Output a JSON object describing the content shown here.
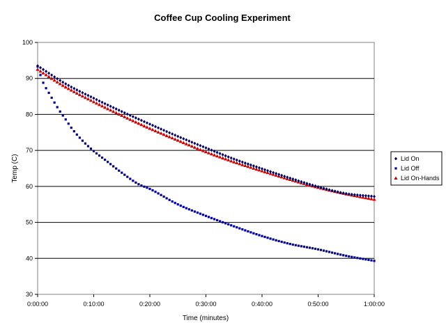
{
  "chart_data": {
    "type": "scatter",
    "title": "Coffee Cup Cooling Experiment",
    "xlabel": "Time (minutes)",
    "ylabel": "Temp (C)",
    "xlim": [
      0,
      60
    ],
    "ylim": [
      30,
      100
    ],
    "x_ticks": [
      0,
      10,
      20,
      30,
      40,
      50,
      60
    ],
    "x_tick_labels": [
      "0:00:00",
      "0:10:00",
      "0:20:00",
      "0:30:00",
      "0:40:00",
      "0:50:00",
      "1:00:00"
    ],
    "y_ticks": [
      30,
      40,
      50,
      60,
      70,
      80,
      90,
      100
    ],
    "y_tick_labels": [
      "30",
      "40",
      "50",
      "60",
      "70",
      "80",
      "90",
      "100"
    ],
    "grid": "horizontal major gridlines",
    "legend_position": "right",
    "series": [
      {
        "name": "Lid On",
        "color": "#000066",
        "marker": "diamond",
        "x": [
          0,
          5,
          10,
          15,
          20,
          25,
          30,
          35,
          40,
          45,
          50,
          55,
          60
        ],
        "y": [
          93.5,
          88.5,
          84.5,
          80.8,
          77.3,
          73.9,
          70.7,
          67.6,
          64.9,
          62.3,
          59.9,
          58.0,
          57.2
        ]
      },
      {
        "name": "Lid Off",
        "color": "#000099",
        "marker": "square",
        "x": [
          0,
          1,
          2,
          3,
          4,
          5,
          6,
          8,
          10,
          12,
          15,
          18,
          20,
          25,
          30,
          35,
          40,
          45,
          50,
          55,
          60
        ],
        "y": [
          93.3,
          88.8,
          86.0,
          83.3,
          80.8,
          78.6,
          76.3,
          72.7,
          69.8,
          67.4,
          63.8,
          60.6,
          59.3,
          55.0,
          51.8,
          48.9,
          46.2,
          44.0,
          42.5,
          40.7,
          39.3
        ]
      },
      {
        "name": "Lid On-Hands",
        "color": "#cc0000",
        "marker": "triangle",
        "x": [
          0,
          5,
          10,
          15,
          20,
          25,
          30,
          35,
          40,
          45,
          50,
          55,
          60
        ],
        "y": [
          92.5,
          87.6,
          83.5,
          79.7,
          76.1,
          72.8,
          69.6,
          66.8,
          64.3,
          61.9,
          59.7,
          57.9,
          56.4
        ]
      }
    ]
  }
}
